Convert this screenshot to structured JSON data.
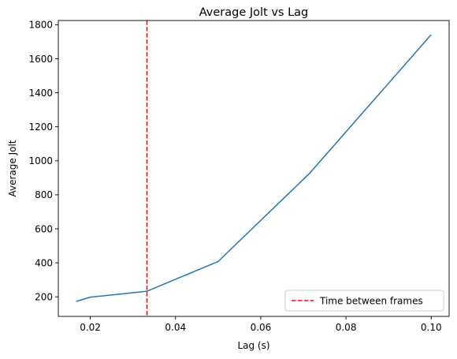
{
  "chart_data": {
    "type": "line",
    "title": "Average Jolt vs Lag",
    "xlabel": "Lag (s)",
    "ylabel": "Average Jolt",
    "xlim": [
      0.0125,
      0.1042
    ],
    "ylim": [
      85,
      1825
    ],
    "xticks": [
      0.02,
      0.04,
      0.06,
      0.08,
      0.1
    ],
    "xtick_labels": [
      "0.02",
      "0.04",
      "0.06",
      "0.08",
      "0.10"
    ],
    "yticks": [
      200,
      400,
      600,
      800,
      1000,
      1200,
      1400,
      1600,
      1800
    ],
    "ytick_labels": [
      "200",
      "400",
      "600",
      "800",
      "1000",
      "1200",
      "1400",
      "1600",
      "1800"
    ],
    "grid": false,
    "legend_position": "lower-right",
    "series": [
      {
        "name": "",
        "color": "#1f77b4",
        "x": [
          0.0167,
          0.02,
          0.0333,
          0.05,
          0.0714,
          0.1
        ],
        "y": [
          173,
          198,
          233,
          408,
          925,
          1742
        ]
      }
    ],
    "reference_lines": [
      {
        "orientation": "vertical",
        "x": 0.0333,
        "label": "Time between frames",
        "color": "#ff0000",
        "style": "dashed"
      }
    ]
  }
}
